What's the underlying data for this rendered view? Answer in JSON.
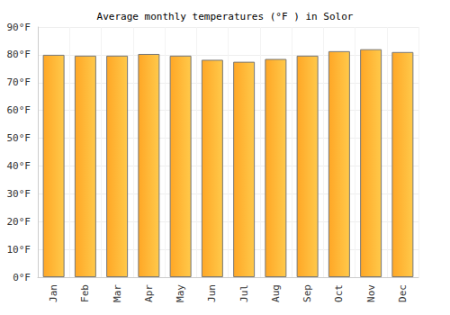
{
  "chart_data": {
    "type": "bar",
    "title": "Average monthly temperatures (°F ) in Solor",
    "categories": [
      "Jan",
      "Feb",
      "Mar",
      "Apr",
      "May",
      "Jun",
      "Jul",
      "Aug",
      "Sep",
      "Oct",
      "Nov",
      "Dec"
    ],
    "values": [
      80,
      79.7,
      79.7,
      80.3,
      79.7,
      78.2,
      77.5,
      78.5,
      79.7,
      81.3,
      82,
      81
    ],
    "color": "#ffa726",
    "ylim": [
      0,
      90
    ],
    "yticks": [
      {
        "value": 0,
        "label": "0°F"
      },
      {
        "value": 10,
        "label": "10°F"
      },
      {
        "value": 20,
        "label": "20°F"
      },
      {
        "value": 30,
        "label": "30°F"
      },
      {
        "value": 40,
        "label": "40°F"
      },
      {
        "value": 50,
        "label": "50°F"
      },
      {
        "value": 60,
        "label": "60°F"
      },
      {
        "value": 70,
        "label": "70°F"
      },
      {
        "value": 80,
        "label": "80°F"
      },
      {
        "value": 90,
        "label": "90°F"
      }
    ],
    "grid": true
  }
}
